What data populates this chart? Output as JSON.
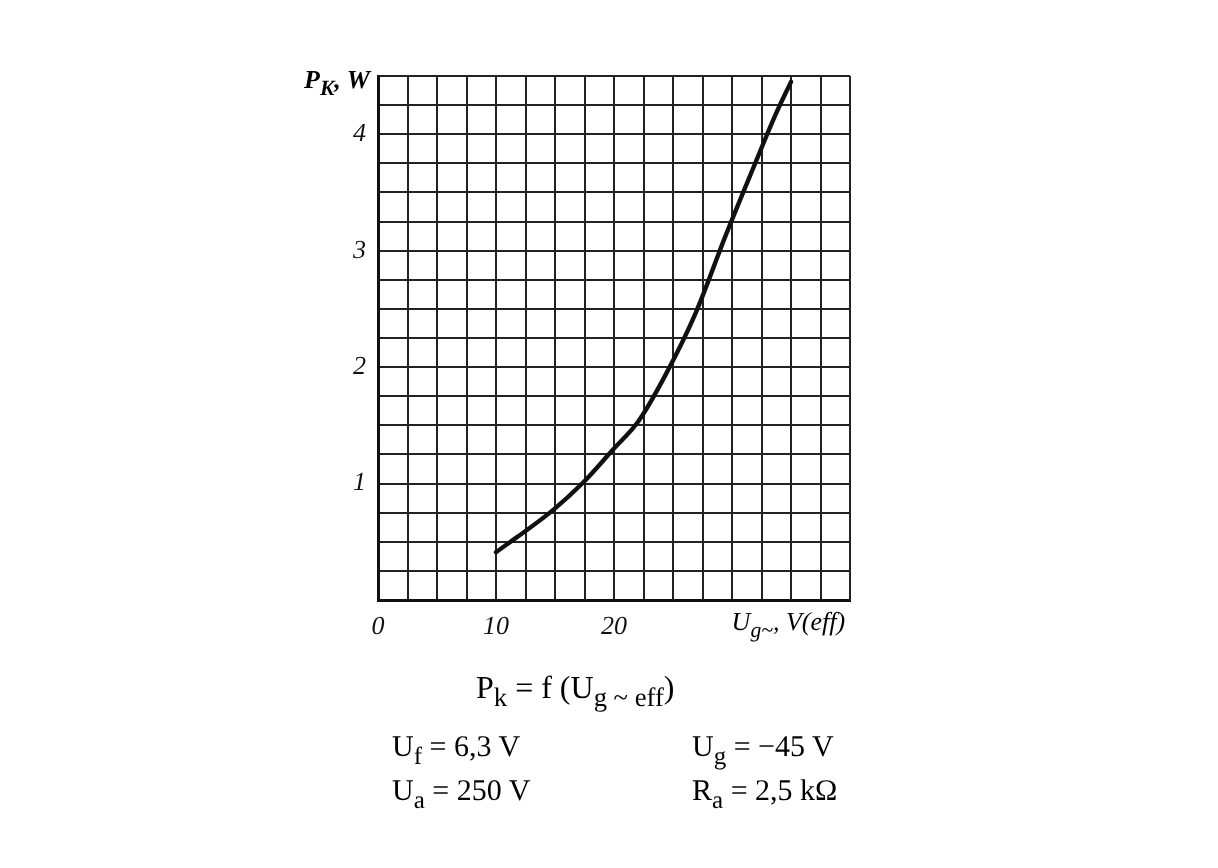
{
  "chart_data": {
    "type": "line",
    "title": "P$_{k}$ = f (U$_{g ~ eff}$)",
    "xlabel": "U$_{g~}$, V(eff)",
    "ylabel": "P$_{K}$, W",
    "x": [
      10,
      14.8,
      17.3,
      19.9,
      22.1,
      24.4,
      26.9,
      29.5,
      31.8,
      33.7,
      35
    ],
    "series": [
      {
        "color": "#111111",
        "values": [
          0.41,
          0.77,
          1.0,
          1.29,
          1.54,
          1.94,
          2.46,
          3.14,
          3.71,
          4.17,
          4.45
        ]
      }
    ],
    "xlim": [
      0,
      40
    ],
    "xticks": [
      0,
      {
        "value": 2.5,
        "label": null
      },
      {
        "value": 5,
        "label": null
      },
      {
        "value": 7.5,
        "label": null
      },
      10,
      {
        "value": 12.5,
        "label": null
      },
      {
        "value": 15,
        "label": null
      },
      {
        "value": 17.5,
        "label": null
      },
      20,
      {
        "value": 22.5,
        "label": null
      },
      {
        "value": 25,
        "label": null
      },
      {
        "value": 27.5,
        "label": null
      },
      {
        "value": 30,
        "label": null
      },
      {
        "value": 32.5,
        "label": null
      },
      {
        "value": 35,
        "label": null
      },
      {
        "value": 37.5,
        "label": null
      },
      {
        "value": 40,
        "label": null
      }
    ],
    "ylim": [
      0,
      4.5
    ],
    "yticks": [
      {
        "value": 0,
        "label": null
      },
      {
        "value": 0.25,
        "label": null
      },
      {
        "value": 0.5,
        "label": null
      },
      {
        "value": 0.75,
        "label": null
      },
      1,
      {
        "value": 1.25,
        "label": null
      },
      {
        "value": 1.5,
        "label": null
      },
      {
        "value": 1.75,
        "label": null
      },
      2,
      {
        "value": 2.25,
        "label": null
      },
      {
        "value": 2.5,
        "label": null
      },
      {
        "value": 2.75,
        "label": null
      },
      3,
      {
        "value": 3.25,
        "label": null
      },
      {
        "value": 3.5,
        "label": null
      },
      {
        "value": 3.75,
        "label": null
      },
      4,
      {
        "value": 4.25,
        "label": null
      },
      {
        "value": 4.5,
        "label": null
      }
    ],
    "grid": true,
    "legend": false,
    "marker": "none",
    "line_style": "solid",
    "annotations": [
      "U$_{f}$ = 6,3 V",
      "U$_{g}$ = −45 V",
      "U$_{a}$ = 250 V",
      "R$_{a}$ = 2,5 kΩ"
    ]
  }
}
